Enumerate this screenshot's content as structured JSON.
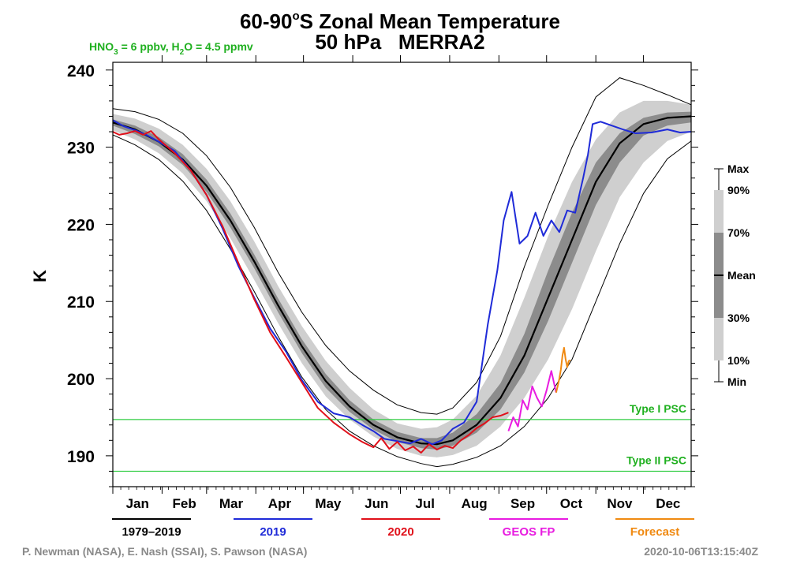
{
  "chart_data": {
    "type": "line",
    "title": "60-90°S Zonal Mean Temperature",
    "title_parts": {
      "lat_start": "60-90",
      "degree_mark": "o",
      "rest": "S Zonal Mean Temperature"
    },
    "subtitle": "50 hPa   MERRA2",
    "ylabel": "K",
    "ylim": [
      186,
      241
    ],
    "yticks": [
      190,
      200,
      210,
      220,
      230,
      240
    ],
    "x_unit": "day of year",
    "xlim": [
      1,
      365
    ],
    "months": [
      "Jan",
      "Feb",
      "Mar",
      "Apr",
      "May",
      "Jun",
      "Jul",
      "Aug",
      "Sep",
      "Oct",
      "Nov",
      "Dec"
    ],
    "month_starts": [
      1,
      32,
      60,
      91,
      121,
      152,
      182,
      213,
      244,
      274,
      305,
      335
    ],
    "note": {
      "hno3_label": "HNO",
      "hno3_sub": "3",
      "hno3_value": " = 6 ppbv, H",
      "h2o_sub": "2",
      "h2o_value": "O = 4.5 ppmv"
    },
    "reference_lines": [
      {
        "label": "Type I PSC",
        "y": 194.7,
        "color": "#2ecc40"
      },
      {
        "label": "Type II PSC",
        "y": 188.0,
        "color": "#2ecc40"
      }
    ],
    "band_legend": [
      "Max",
      "90%",
      "70%",
      "Mean",
      "30%",
      "10%",
      "Min"
    ],
    "climatology": {
      "x": [
        1,
        15,
        30,
        45,
        60,
        75,
        90,
        105,
        120,
        135,
        150,
        165,
        180,
        195,
        205,
        215,
        230,
        245,
        260,
        275,
        290,
        305,
        320,
        335,
        350,
        365
      ],
      "mean": [
        233.2,
        232.3,
        230.7,
        228.4,
        225.0,
        220.5,
        215.2,
        209.5,
        204.2,
        199.7,
        196.4,
        194.0,
        192.4,
        191.6,
        191.5,
        192.0,
        194.0,
        197.5,
        203.0,
        210.5,
        218.0,
        225.5,
        230.5,
        233.0,
        233.8,
        234.0
      ],
      "p10": [
        232.2,
        231.0,
        229.2,
        226.6,
        223.0,
        218.2,
        212.8,
        207.2,
        202.0,
        197.7,
        194.7,
        192.5,
        190.9,
        190.0,
        189.8,
        190.1,
        191.3,
        193.8,
        197.5,
        202.5,
        209.0,
        216.5,
        223.5,
        228.0,
        230.8,
        232.0
      ],
      "p30": [
        232.8,
        231.7,
        230.1,
        227.7,
        224.2,
        219.6,
        214.3,
        208.6,
        203.3,
        198.8,
        195.7,
        193.4,
        191.8,
        191.0,
        190.8,
        191.3,
        193.0,
        196.0,
        200.8,
        207.5,
        215.0,
        222.5,
        228.0,
        231.5,
        232.8,
        233.2
      ],
      "p70": [
        233.6,
        232.8,
        231.3,
        229.1,
        225.8,
        221.4,
        216.1,
        210.4,
        205.1,
        200.6,
        197.2,
        194.7,
        193.1,
        192.3,
        192.3,
        193.0,
        195.4,
        199.4,
        205.8,
        214.0,
        221.5,
        228.0,
        231.8,
        233.8,
        234.5,
        234.6
      ],
      "p90": [
        234.3,
        233.7,
        232.4,
        230.3,
        227.2,
        223.0,
        217.8,
        212.0,
        206.8,
        202.3,
        198.8,
        196.0,
        194.2,
        193.5,
        193.7,
        194.7,
        197.8,
        203.0,
        210.5,
        218.5,
        225.5,
        231.0,
        234.5,
        236.0,
        236.0,
        235.5
      ],
      "min": [
        231.6,
        230.3,
        228.4,
        225.6,
        221.8,
        216.8,
        211.3,
        205.5,
        200.2,
        196.0,
        193.2,
        191.3,
        189.9,
        189.0,
        188.6,
        188.9,
        189.8,
        191.3,
        193.8,
        197.5,
        202.5,
        210.0,
        217.5,
        224.0,
        228.5,
        230.8
      ],
      "max": [
        235.0,
        234.6,
        233.6,
        231.8,
        228.9,
        224.8,
        219.6,
        213.8,
        208.6,
        204.3,
        201.0,
        198.5,
        196.6,
        195.6,
        195.4,
        196.2,
        199.5,
        205.5,
        214.5,
        222.5,
        230.0,
        236.5,
        239.0,
        238.0,
        236.8,
        235.5
      ]
    },
    "series": [
      {
        "name": "1979–2019",
        "color": "#000000",
        "x": [
          1,
          15,
          30,
          45,
          60,
          75,
          90,
          105,
          120,
          135,
          150,
          165,
          180,
          195,
          205,
          215,
          230,
          245,
          260,
          275,
          290,
          305,
          320,
          335,
          350,
          365
        ],
        "y": [
          233.2,
          232.3,
          230.7,
          228.4,
          225.0,
          220.5,
          215.2,
          209.5,
          204.2,
          199.7,
          196.4,
          194.0,
          192.4,
          191.6,
          191.5,
          192.0,
          194.0,
          197.5,
          203.0,
          210.5,
          218.0,
          225.5,
          230.5,
          233.0,
          233.8,
          234.0
        ]
      },
      {
        "name": "2019",
        "color": "#1f2bd8",
        "x": [
          1,
          8,
          15,
          22,
          30,
          40,
          50,
          60,
          70,
          80,
          90,
          100,
          110,
          120,
          130,
          140,
          150,
          158,
          165,
          172,
          180,
          188,
          195,
          202,
          208,
          215,
          222,
          230,
          237,
          243,
          247,
          252,
          257,
          262,
          267,
          272,
          277,
          282,
          287,
          292,
          297,
          300,
          303,
          308,
          315,
          322,
          330,
          340,
          350,
          358,
          365
        ],
        "y": [
          233.5,
          232.7,
          232.2,
          231.6,
          230.7,
          229.5,
          227.0,
          223.8,
          219.5,
          214.6,
          210.5,
          206.5,
          203.5,
          199.8,
          197.0,
          195.5,
          195.0,
          194.0,
          193.2,
          192.2,
          191.9,
          191.6,
          192.2,
          191.5,
          192.0,
          193.5,
          194.3,
          197.0,
          207.0,
          214.0,
          220.5,
          224.2,
          217.5,
          218.5,
          221.5,
          218.5,
          220.5,
          219.0,
          221.8,
          221.5,
          226.0,
          229.0,
          233.0,
          233.3,
          232.8,
          232.3,
          231.8,
          231.9,
          232.3,
          231.9,
          232.0
        ]
      },
      {
        "name": "2020",
        "color": "#e0101a",
        "x": [
          1,
          5,
          10,
          15,
          20,
          25,
          30,
          40,
          50,
          60,
          70,
          80,
          90,
          100,
          110,
          120,
          130,
          140,
          150,
          158,
          165,
          170,
          175,
          180,
          185,
          190,
          195,
          200,
          205,
          210,
          215,
          220,
          225,
          230,
          235,
          240,
          245,
          250
        ],
        "y": [
          232.0,
          231.6,
          231.8,
          232.1,
          231.6,
          232.1,
          231.0,
          229.2,
          227.0,
          223.8,
          219.8,
          215.0,
          210.3,
          206.0,
          202.8,
          199.5,
          196.2,
          194.3,
          192.8,
          191.8,
          191.1,
          192.3,
          190.9,
          191.8,
          190.7,
          191.2,
          190.4,
          191.5,
          190.8,
          191.3,
          191.0,
          192.0,
          192.7,
          193.6,
          194.2,
          195.0,
          195.2,
          195.6
        ]
      },
      {
        "name": "GEOS FP",
        "color": "#e81ce0",
        "x": [
          250,
          253,
          256,
          259,
          262,
          265,
          268,
          271,
          274,
          277,
          280
        ],
        "y": [
          193.2,
          195.0,
          193.8,
          197.2,
          196.0,
          199.0,
          197.5,
          196.4,
          198.5,
          201.0,
          198.2
        ]
      },
      {
        "name": "Forecast",
        "color": "#f08a12",
        "x": [
          280,
          281,
          282,
          283,
          284,
          285,
          286,
          287,
          288,
          289
        ],
        "y": [
          198.2,
          199.0,
          200.0,
          201.2,
          203.0,
          204.0,
          202.5,
          201.5,
          202.3,
          202.4
        ]
      }
    ]
  },
  "credits": "P. Newman (NASA), E. Nash (SSAI), S. Pawson (NASA)",
  "timestamp": "2020-10-06T13:15:40Z"
}
